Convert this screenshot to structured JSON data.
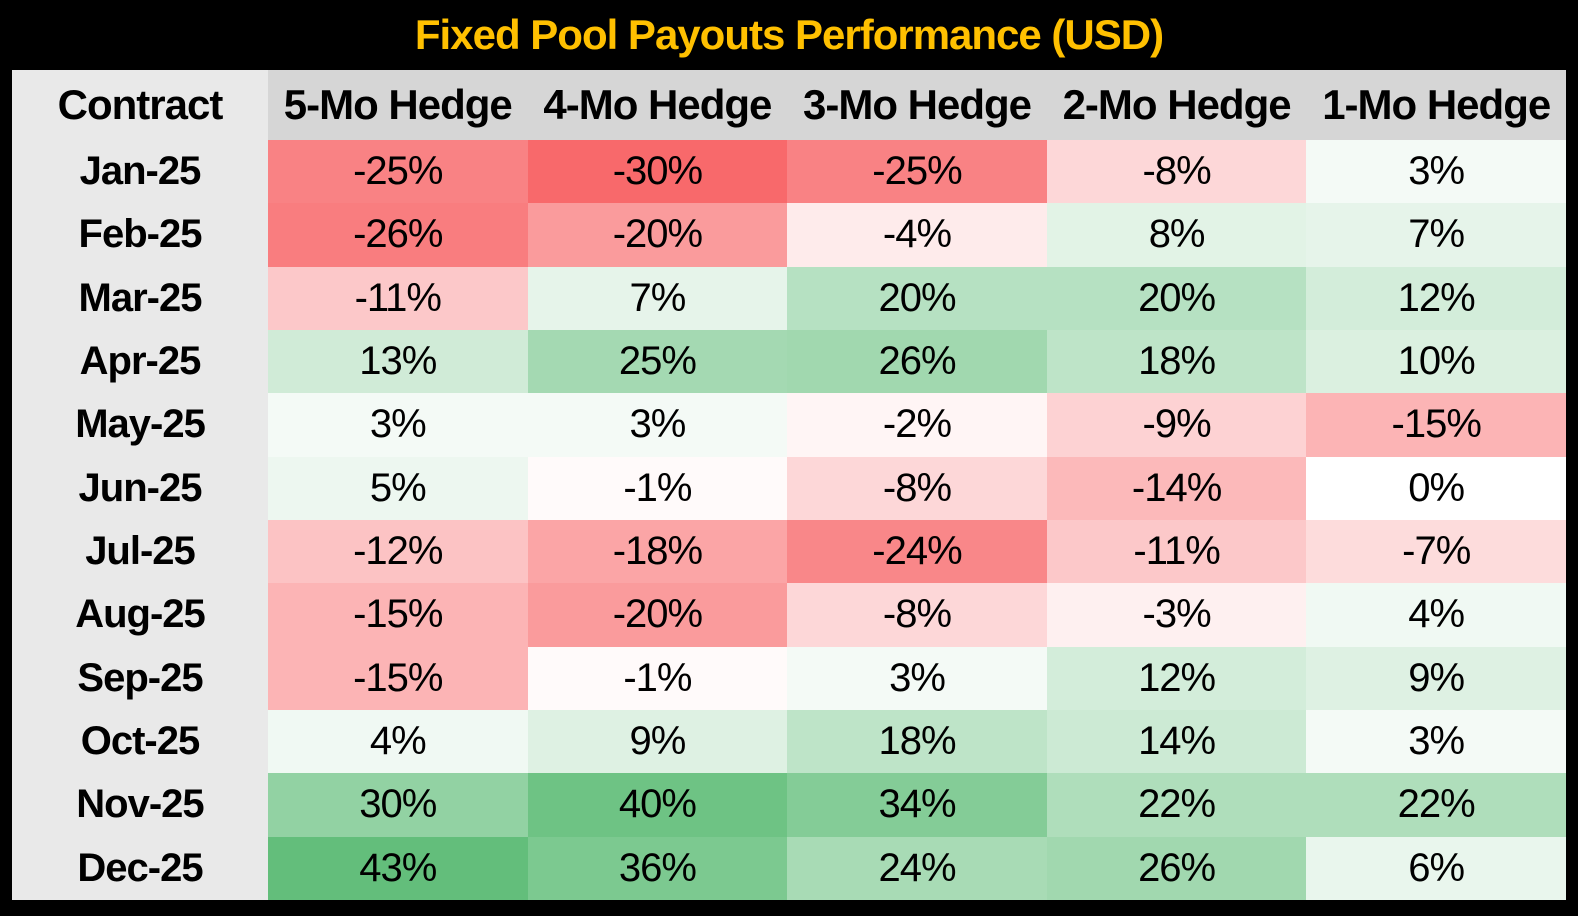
{
  "title": "Fixed Pool Payouts Performance (USD)",
  "colors": {
    "title_bg": "#000000",
    "title_text": "#FFC000",
    "header_bg": "#D6D6D6",
    "row_label_bg": "#E9E9E9",
    "frame_border": "#000000",
    "cell_text": "#000000"
  },
  "chart_data": {
    "type": "heatmap",
    "title": "Fixed Pool Payouts Performance (USD)",
    "unit": "%",
    "columns": [
      "Contract",
      "5-Mo Hedge",
      "4-Mo Hedge",
      "3-Mo Hedge",
      "2-Mo Hedge",
      "1-Mo Hedge"
    ],
    "rows": [
      {
        "contract": "Jan-25",
        "values": [
          -25,
          -30,
          -25,
          -8,
          3
        ]
      },
      {
        "contract": "Feb-25",
        "values": [
          -26,
          -20,
          -4,
          8,
          7
        ]
      },
      {
        "contract": "Mar-25",
        "values": [
          -11,
          7,
          20,
          20,
          12
        ]
      },
      {
        "contract": "Apr-25",
        "values": [
          13,
          25,
          26,
          18,
          10
        ]
      },
      {
        "contract": "May-25",
        "values": [
          3,
          3,
          -2,
          -9,
          -15
        ]
      },
      {
        "contract": "Jun-25",
        "values": [
          5,
          -1,
          -8,
          -14,
          0
        ]
      },
      {
        "contract": "Jul-25",
        "values": [
          -12,
          -18,
          -24,
          -11,
          -7
        ]
      },
      {
        "contract": "Aug-25",
        "values": [
          -15,
          -20,
          -8,
          -3,
          4
        ]
      },
      {
        "contract": "Sep-25",
        "values": [
          -15,
          -1,
          3,
          12,
          9
        ]
      },
      {
        "contract": "Oct-25",
        "values": [
          4,
          9,
          18,
          14,
          3
        ]
      },
      {
        "contract": "Nov-25",
        "values": [
          30,
          40,
          34,
          22,
          22
        ]
      },
      {
        "contract": "Dec-25",
        "values": [
          43,
          36,
          24,
          26,
          6
        ]
      }
    ],
    "color_scale": {
      "min_color": "#F8696B",
      "mid_color": "#FFFFFF",
      "max_color": "#63BE7B",
      "domain": [
        -30,
        0,
        43
      ]
    },
    "legend_position": "none",
    "grid": false
  }
}
